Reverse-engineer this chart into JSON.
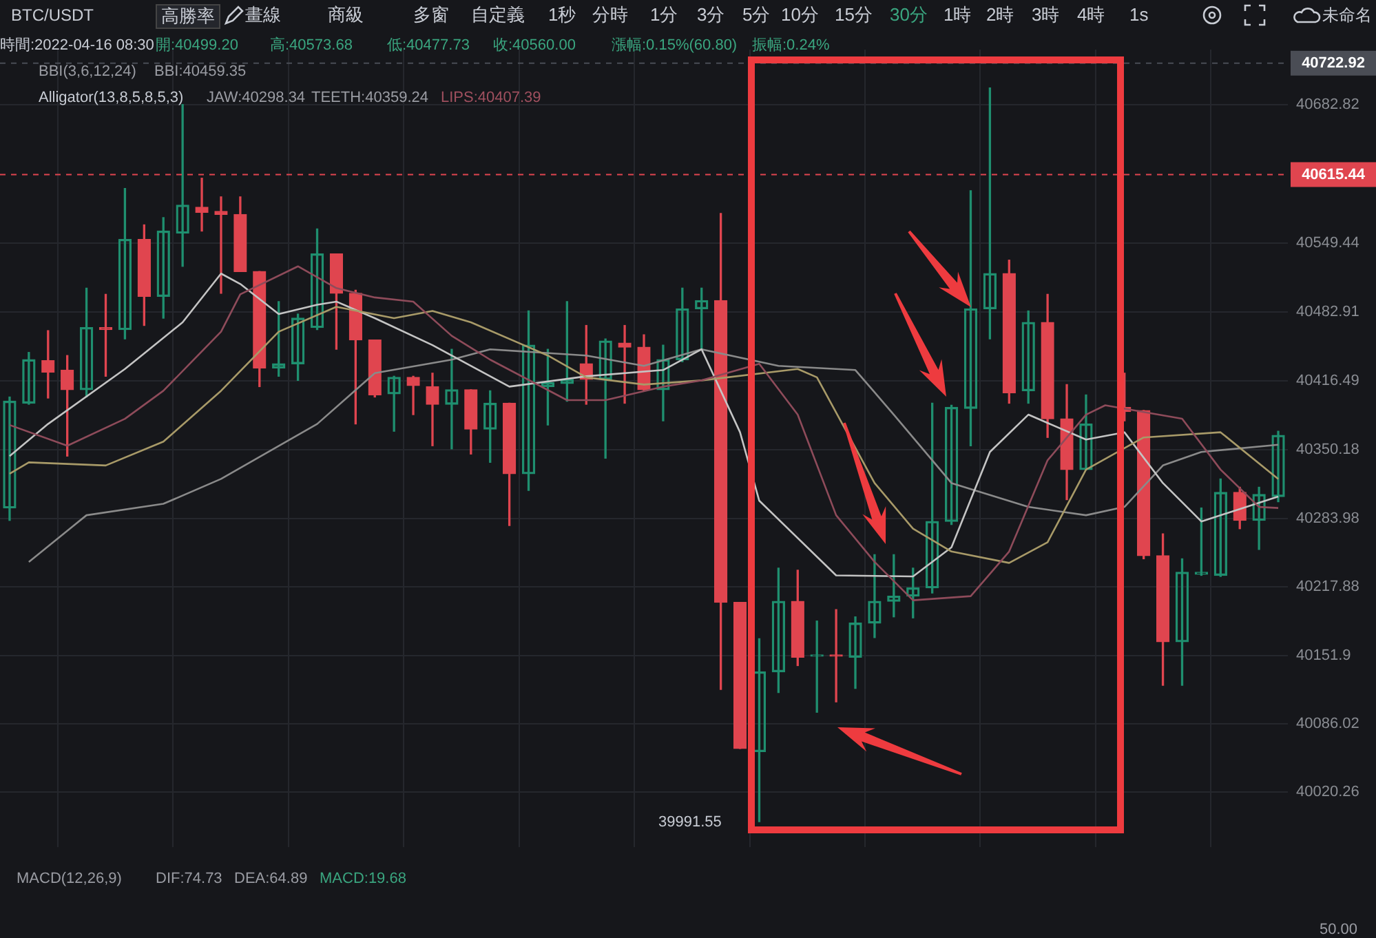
{
  "chart_data": {
    "type": "candlestick",
    "title": "BTC/USDT",
    "categories": [
      null,
      null,
      null,
      null,
      null,
      null,
      null,
      null,
      null,
      null,
      null,
      null,
      null,
      null,
      null,
      null,
      null,
      null,
      null,
      null,
      null,
      null,
      null,
      null,
      null,
      null,
      null,
      null,
      null,
      null,
      null,
      null,
      null,
      null,
      null,
      null,
      null,
      null,
      null,
      null,
      null,
      null,
      null,
      null,
      null,
      null,
      null,
      null,
      null,
      null,
      null,
      null,
      null,
      null,
      null,
      null,
      null,
      null,
      null,
      null,
      null,
      null,
      null,
      null,
      null,
      null,
      null
    ],
    "ohlc": [
      [
        40294,
        40401,
        40282,
        40397
      ],
      [
        40395,
        40444,
        40394,
        40437
      ],
      [
        40436,
        40465,
        40400,
        40425
      ],
      [
        40427,
        40441,
        40344,
        40408
      ],
      [
        40408,
        40506,
        40401,
        40468
      ],
      [
        40468,
        40500,
        40421,
        40466
      ],
      [
        40466,
        40602,
        40457,
        40553
      ],
      [
        40553,
        40567,
        40470,
        40498
      ],
      [
        40498,
        40574,
        40477,
        40561
      ],
      [
        40559,
        40683,
        40527,
        40586
      ],
      [
        40584,
        40612,
        40561,
        40579
      ],
      [
        40580,
        40594,
        40501,
        40577
      ],
      [
        40577,
        40594,
        40522,
        40522
      ],
      [
        40522,
        40522,
        40411,
        40429
      ],
      [
        40429,
        40493,
        40421,
        40433
      ],
      [
        40433,
        40481,
        40417,
        40477
      ],
      [
        40468,
        40563,
        40466,
        40539
      ],
      [
        40539,
        40539,
        40447,
        40501
      ],
      [
        40501,
        40504,
        40375,
        40456
      ],
      [
        40456,
        40456,
        40401,
        40403
      ],
      [
        40404,
        40421,
        40368,
        40420
      ],
      [
        40420,
        40421,
        40384,
        40412
      ],
      [
        40411,
        40424,
        40354,
        40394
      ],
      [
        40394,
        40447,
        40351,
        40408
      ],
      [
        40408,
        40408,
        40346,
        40370
      ],
      [
        40370,
        40407,
        40338,
        40395
      ],
      [
        40395,
        40395,
        40277,
        40327
      ],
      [
        40327,
        40484,
        40311,
        40451
      ],
      [
        40411,
        40447,
        40374,
        40415
      ],
      [
        40414,
        40493,
        40397,
        40418
      ],
      [
        40433,
        40470,
        40394,
        40418
      ],
      [
        40418,
        40457,
        40342,
        40455
      ],
      [
        40453,
        40470,
        40395,
        40449
      ],
      [
        40449,
        40461,
        40407,
        40408
      ],
      [
        40408,
        40451,
        40378,
        40437
      ],
      [
        40437,
        40506,
        40435,
        40486
      ],
      [
        40486,
        40506,
        40447,
        40494
      ],
      [
        40494,
        40578,
        40119,
        40203
      ],
      [
        40203,
        40203,
        40062,
        40062
      ],
      [
        40059,
        40168,
        39991.55,
        40136
      ],
      [
        40136,
        40236,
        40116,
        40204
      ],
      [
        40204,
        40234,
        40142,
        40150
      ],
      [
        40151,
        40185,
        40097,
        40152
      ],
      [
        40152,
        40196,
        40107,
        40151
      ],
      [
        40150,
        40189,
        40120,
        40183
      ],
      [
        40183,
        40249,
        40169,
        40204
      ],
      [
        40204,
        40249,
        40189,
        40209
      ],
      [
        40209,
        40236,
        40188,
        40217
      ],
      [
        40217,
        40395,
        40212,
        40281
      ],
      [
        40281,
        40393,
        40278,
        40391
      ],
      [
        40390,
        40600,
        40354,
        40486
      ],
      [
        40486,
        40699,
        40457,
        40520
      ],
      [
        40520,
        40533,
        40395,
        40405
      ],
      [
        40407,
        40484,
        40395,
        40473
      ],
      [
        40473,
        40500,
        40362,
        40380
      ],
      [
        40380,
        40413,
        40302,
        40331
      ],
      [
        40331,
        40403,
        40331,
        40375
      ],
      null,
      [
        40391,
        40424,
        40378,
        40387
      ],
      [
        40388,
        40388,
        40245,
        40248
      ],
      [
        40248,
        40269,
        40123,
        40165
      ],
      [
        40165,
        40245,
        40123,
        40232
      ],
      [
        40230,
        40294,
        40229,
        40232
      ],
      [
        40229,
        40322,
        40228,
        40309
      ],
      [
        40309,
        40314,
        40274,
        40282
      ],
      [
        40282,
        40314,
        40254,
        40307
      ],
      [
        40305,
        40368,
        40300,
        40364
      ]
    ],
    "colors": [
      "#1f8f6f",
      "#1f8f6f",
      "#e0454f",
      "#e0454f",
      "#1f8f6f",
      "#e0454f",
      "#1f8f6f",
      "#e0454f",
      "#1f8f6f",
      "#1f8f6f",
      "#e0454f",
      "#e0454f",
      "#e0454f",
      "#e0454f",
      "#1f8f6f",
      "#1f8f6f",
      "#1f8f6f",
      "#e0454f",
      "#e0454f",
      "#e0454f",
      "#1f8f6f",
      "#e0454f",
      "#e0454f",
      "#1f8f6f",
      "#e0454f",
      "#1f8f6f",
      "#e0454f",
      "#1f8f6f",
      "#1f8f6f",
      "#1f8f6f",
      "#e0454f",
      "#1f8f6f",
      "#e0454f",
      "#e0454f",
      "#1f8f6f",
      "#1f8f6f",
      "#1f8f6f",
      "#e0454f",
      "#e0454f",
      "#1f8f6f",
      "#1f8f6f",
      "#e0454f",
      "#1f8f6f",
      "#e0454f",
      "#1f8f6f",
      "#1f8f6f",
      "#1f8f6f",
      "#1f8f6f",
      "#1f8f6f",
      "#1f8f6f",
      "#1f8f6f",
      "#1f8f6f",
      "#e0454f",
      "#1f8f6f",
      "#e0454f",
      "#e0454f",
      "#1f8f6f",
      null,
      "#e0454f",
      "#e0454f",
      "#e0454f",
      "#1f8f6f",
      "#1f8f6f",
      "#1f8f6f",
      "#e0454f",
      "#1f8f6f",
      "#1f8f6f"
    ],
    "series": [
      {
        "type": "line",
        "color": "#8e4b5a",
        "values": [
          40374,
          null,
          null,
          40354,
          null,
          null,
          40380,
          null,
          40407,
          null,
          null,
          40464,
          40500,
          null,
          null,
          40527,
          null,
          40506,
          null,
          40497,
          null,
          40493,
          null,
          40460,
          null,
          40437,
          null,
          null,
          null,
          40398,
          null,
          40398,
          null,
          null,
          40411,
          null,
          40417,
          null,
          null,
          40433,
          null,
          40384,
          null,
          40287,
          null,
          40242,
          null,
          40205,
          null,
          null,
          40209,
          null,
          40252,
          null,
          40340,
          null,
          40384,
          40393,
          null,
          null,
          null,
          40380,
          null,
          40331,
          null,
          40295,
          40294
        ]
      },
      {
        "type": "line",
        "color": "#a89a68",
        "values": [
          40327,
          40338,
          null,
          null,
          null,
          40335,
          null,
          null,
          40358,
          null,
          null,
          40407,
          null,
          null,
          40464,
          null,
          null,
          40488,
          null,
          null,
          40477,
          null,
          40484,
          null,
          40473,
          null,
          null,
          null,
          40441,
          null,
          40420,
          null,
          null,
          40413,
          null,
          null,
          40417,
          null,
          null,
          null,
          null,
          40428,
          40420,
          null,
          null,
          40318,
          null,
          40274,
          null,
          40252,
          null,
          null,
          40241,
          null,
          40261,
          null,
          40331,
          null,
          null,
          40362,
          null,
          null,
          null,
          40367,
          null,
          null,
          40322
        ]
      },
      {
        "type": "line",
        "color": "#c4c4c4",
        "values": [
          40344,
          null,
          40375,
          null,
          null,
          null,
          40428,
          null,
          null,
          40473,
          null,
          40520,
          40510,
          null,
          40481,
          null,
          40490,
          40493,
          null,
          40477,
          null,
          null,
          40451,
          null,
          null,
          null,
          40411,
          null,
          null,
          null,
          40421,
          null,
          null,
          null,
          40427,
          null,
          40447,
          null,
          40367,
          40301,
          null,
          null,
          null,
          40229,
          null,
          null,
          null,
          40228,
          null,
          40256,
          null,
          40348,
          null,
          40384,
          null,
          null,
          40360,
          null,
          40367,
          null,
          40318,
          null,
          40281,
          null,
          null,
          null,
          40305
        ]
      },
      {
        "type": "line",
        "color": "#8a8a8a",
        "values": [
          null,
          40242,
          null,
          null,
          40287,
          null,
          null,
          null,
          40298,
          null,
          null,
          40322,
          null,
          null,
          null,
          null,
          40375,
          null,
          null,
          40424,
          null,
          null,
          null,
          40437,
          null,
          40447,
          null,
          null,
          null,
          null,
          40441,
          null,
          null,
          40431,
          null,
          null,
          40447,
          null,
          null,
          null,
          40431,
          null,
          null,
          null,
          40427,
          null,
          40384,
          null,
          null,
          40318,
          null,
          null,
          null,
          40295,
          null,
          null,
          40287,
          null,
          40295,
          null,
          40335,
          null,
          40348,
          null,
          null,
          null,
          40355
        ]
      }
    ],
    "ylim": [
      39967,
      40736
    ],
    "yticks": [
      40020.26,
      40086.02,
      40151.9,
      40217.88,
      40283.98,
      40350.18,
      40416.49,
      40482.91,
      40549.44,
      40682.82
    ],
    "grid": true,
    "tick_labels": "y",
    "ref_lines": [
      {
        "axis": "y",
        "value": 40615.44,
        "label": "40615.44",
        "color": "#e0454f",
        "line_style": "dashed"
      },
      {
        "axis": "y",
        "value": 40722.92,
        "label": "40722.92",
        "color": "#4a4d55",
        "line_style": "dashed"
      }
    ],
    "annotations": [
      "高勝率",
      "畫線",
      "商級",
      "多窗",
      "自定義",
      "1秒",
      "分時",
      "1分",
      "3分",
      "5分",
      "10分",
      "15分",
      "30分",
      "1時",
      "2時",
      "3時",
      "4時",
      "1s",
      "未命名",
      "時間:2022-04-16 08:30",
      "開:40499.20",
      "高:40573.68",
      "低:40477.73",
      "收:40560.00",
      "漲幅:0.15%(60.80)",
      "振幅:0.24%",
      "BBI(3,6,12,24)",
      "BBI:40459.35",
      "Alligator(13,8,5,8,5,3)",
      "JAW:40298.34",
      "TEETH:40359.24",
      "LIPS:40407.39",
      "MACD(12,26,9)",
      "DIF:74.73",
      "DEA:64.89",
      "MACD:19.68",
      "50.00",
      "39991.55"
    ]
  }
}
